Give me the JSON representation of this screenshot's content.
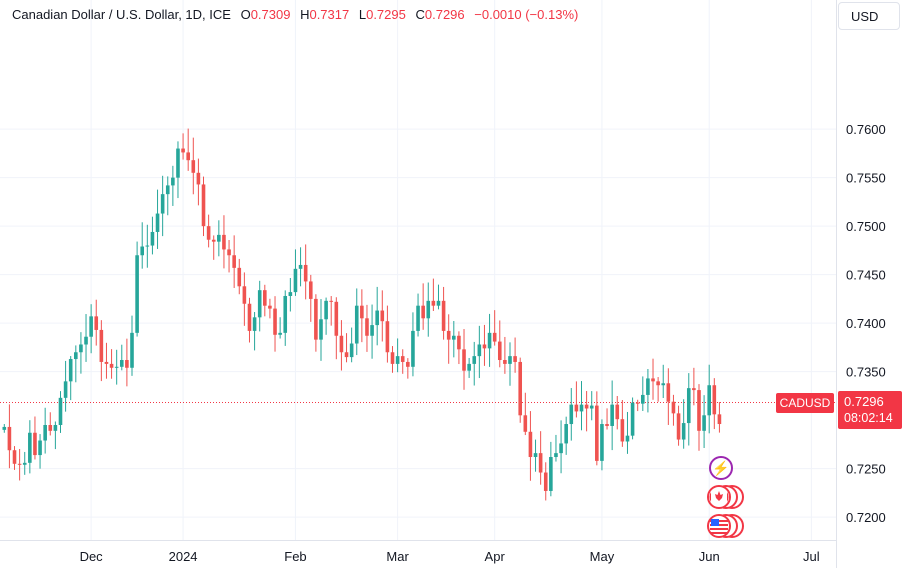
{
  "legend": {
    "symbol_title": "Canadian Dollar / U.S. Dollar, 1D, ICE",
    "open_label": "O",
    "open": "0.7309",
    "high_label": "H",
    "high": "0.7317",
    "low_label": "L",
    "low": "0.7295",
    "close_label": "C",
    "close": "0.7296",
    "change": "−0.0010 (−0.13%)"
  },
  "currency_button": "USD",
  "symbol_tag": "CADUSD",
  "last_price": "0.7296",
  "countdown": "08:02:14",
  "colors": {
    "up": "#26a69a",
    "down": "#ef5350",
    "tag": "#f23645",
    "grid": "#f0f3fa",
    "axis_text": "#131722",
    "event_purple": "#9c27b0"
  },
  "event_icons": [
    "lightning-icon",
    "canada-flag-icon",
    "us-flag-icon"
  ],
  "chart_data": {
    "type": "candlestick",
    "title": "Canadian Dollar / U.S. Dollar, 1D, ICE",
    "y_ticks": [
      "0.7600",
      "0.7550",
      "0.7500",
      "0.7450",
      "0.7400",
      "0.7350",
      "0.7250",
      "0.7200"
    ],
    "x_ticks": [
      "Dec",
      "2024",
      "Feb",
      "Mar",
      "Apr",
      "May",
      "Jun",
      "Jul"
    ],
    "ylim": [
      0.7187,
      0.7612
    ],
    "grid": true,
    "last_value": 0.7296,
    "closes": [
      0.7293,
      0.7269,
      0.7255,
      0.7254,
      0.7256,
      0.7287,
      0.7264,
      0.7279,
      0.7295,
      0.7289,
      0.7295,
      0.7323,
      0.734,
      0.7363,
      0.737,
      0.7378,
      0.7386,
      0.7407,
      0.7393,
      0.736,
      0.7358,
      0.7354,
      0.7355,
      0.7362,
      0.7354,
      0.739,
      0.747,
      0.7479,
      0.748,
      0.7494,
      0.7513,
      0.7533,
      0.7542,
      0.755,
      0.758,
      0.7576,
      0.7568,
      0.7555,
      0.7543,
      0.75,
      0.7486,
      0.7484,
      0.7491,
      0.7476,
      0.747,
      0.7457,
      0.7438,
      0.742,
      0.7392,
      0.7406,
      0.7434,
      0.7418,
      0.7415,
      0.7388,
      0.739,
      0.7428,
      0.7432,
      0.7456,
      0.746,
      0.7443,
      0.7425,
      0.7383,
      0.7404,
      0.7423,
      0.7422,
      0.7387,
      0.737,
      0.7365,
      0.7379,
      0.7418,
      0.7405,
      0.7387,
      0.7398,
      0.7413,
      0.7402,
      0.737,
      0.7358,
      0.7366,
      0.736,
      0.7355,
      0.7392,
      0.7418,
      0.7405,
      0.7423,
      0.7418,
      0.7423,
      0.7392,
      0.7383,
      0.7387,
      0.7373,
      0.7351,
      0.7358,
      0.7366,
      0.7378,
      0.7374,
      0.739,
      0.7381,
      0.7362,
      0.7358,
      0.7366,
      0.736,
      0.7305,
      0.7288,
      0.7262,
      0.7266,
      0.7246,
      0.7227,
      0.7262,
      0.7266,
      0.7276,
      0.7296,
      0.7316,
      0.7309,
      0.7316,
      0.7312,
      0.7315,
      0.7258,
      0.7296,
      0.7294,
      0.7316,
      0.7301,
      0.7278,
      0.7284,
      0.7318,
      0.7317,
      0.7326,
      0.7343,
      0.734,
      0.7336,
      0.7338,
      0.7319,
      0.7307,
      0.728,
      0.7297,
      0.7333,
      0.7331,
      0.7289,
      0.7305,
      0.7336,
      0.7306,
      0.7296
    ]
  }
}
